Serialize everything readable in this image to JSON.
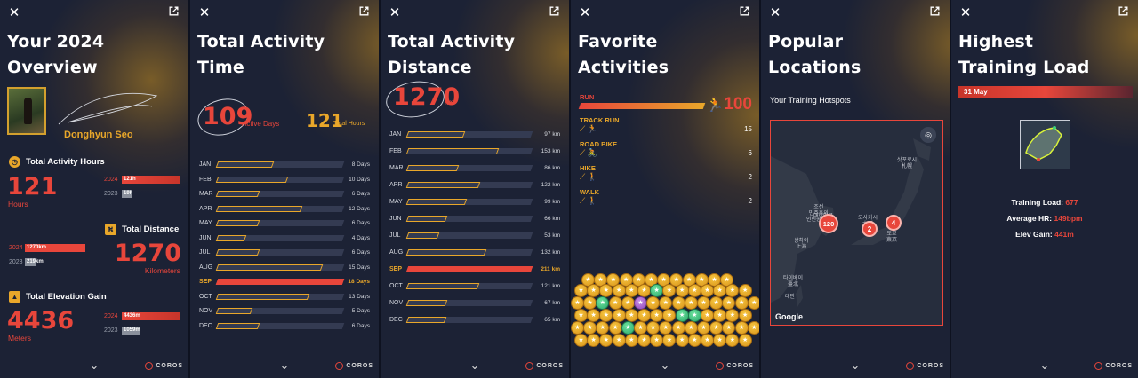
{
  "overview": {
    "title_l1": "Your 2024",
    "title_l2": "Overview",
    "user_name": "Donghyun Seo",
    "activity_hours": {
      "label": "Total Activity Hours",
      "value": "121",
      "unit": "Hours",
      "y2024_label": "2024",
      "y2024_value": "121h",
      "y2023_label": "2023",
      "y2023_value": "19h"
    },
    "distance": {
      "label": "Total Distance",
      "value": "1270",
      "unit": "Kilometers",
      "y2024_label": "2024",
      "y2024_value": "1270km",
      "y2023_label": "2023",
      "y2023_value": "219km"
    },
    "elevation": {
      "label": "Total Elevation Gain",
      "value": "4436",
      "unit": "Meters",
      "y2024_label": "2024",
      "y2024_value": "4436m",
      "y2023_label": "2023",
      "y2023_value": "1059m"
    }
  },
  "activity_time": {
    "title_l1": "Total Activity",
    "title_l2": "Time",
    "active_days": "109",
    "active_days_label": "Active Days",
    "total_hours": "121",
    "total_hours_label": "Total Hours",
    "months": [
      {
        "m": "JAN",
        "v": "8 Days",
        "n": 8
      },
      {
        "m": "FEB",
        "v": "10 Days",
        "n": 10
      },
      {
        "m": "MAR",
        "v": "6 Days",
        "n": 6
      },
      {
        "m": "APR",
        "v": "12 Days",
        "n": 12
      },
      {
        "m": "MAY",
        "v": "6 Days",
        "n": 6
      },
      {
        "m": "JUN",
        "v": "4 Days",
        "n": 4
      },
      {
        "m": "JUL",
        "v": "6 Days",
        "n": 6
      },
      {
        "m": "AUG",
        "v": "15 Days",
        "n": 15
      },
      {
        "m": "SEP",
        "v": "18 Days",
        "n": 18,
        "hot": true
      },
      {
        "m": "OCT",
        "v": "13 Days",
        "n": 13
      },
      {
        "m": "NOV",
        "v": "5 Days",
        "n": 5
      },
      {
        "m": "DEC",
        "v": "6 Days",
        "n": 6
      }
    ],
    "max": 18
  },
  "activity_distance": {
    "title": "Total Activity Distance",
    "value": "1270",
    "unit": "km",
    "months": [
      {
        "m": "JAN",
        "v": "97 km",
        "n": 97
      },
      {
        "m": "FEB",
        "v": "153 km",
        "n": 153
      },
      {
        "m": "MAR",
        "v": "86 km",
        "n": 86
      },
      {
        "m": "APR",
        "v": "122 km",
        "n": 122
      },
      {
        "m": "MAY",
        "v": "99 km",
        "n": 99
      },
      {
        "m": "JUN",
        "v": "66 km",
        "n": 66
      },
      {
        "m": "JUL",
        "v": "53 km",
        "n": 53
      },
      {
        "m": "AUG",
        "v": "132 km",
        "n": 132
      },
      {
        "m": "SEP",
        "v": "211 km",
        "n": 211,
        "hot": true
      },
      {
        "m": "OCT",
        "v": "121 km",
        "n": 121
      },
      {
        "m": "NOV",
        "v": "67 km",
        "n": 67
      },
      {
        "m": "DEC",
        "v": "65 km",
        "n": 65
      }
    ],
    "max": 211
  },
  "favorites": {
    "title_l1": "Favorite",
    "title_l2": "Activities",
    "run_label": "RUN",
    "run_count": "100",
    "items": [
      {
        "label": "TRACK RUN",
        "count": "15"
      },
      {
        "label": "ROAD BIKE",
        "count": "6"
      },
      {
        "label": "HIKE",
        "count": "2"
      },
      {
        "label": "WALK",
        "count": "2"
      }
    ]
  },
  "locations": {
    "title_l1": "Popular",
    "title_l2": "Locations",
    "subtitle": "Your Training Hotspots",
    "markers": [
      {
        "count": "120"
      },
      {
        "count": "2"
      },
      {
        "count": "4"
      }
    ],
    "map_labels": [
      "조선\n민주주의\n인민공화국",
      "대한민국",
      "상하이\n上海",
      "타이베이\n臺北",
      "대만",
      "오사카시\n大阪",
      "도쿄\n東京",
      "삿포로시\n札幌"
    ],
    "attribution": "Google"
  },
  "training_load": {
    "title_l1": "Highest",
    "title_l2": "Training Load",
    "date": "31 May",
    "load_label": "Training Load:",
    "load_value": "677",
    "hr_label": "Average HR:",
    "hr_value": "149bpm",
    "elev_label": "Elev Gain:",
    "elev_value": "441m"
  },
  "brand": "COROS",
  "colors": {
    "accent_red": "#e8463b",
    "accent_orange": "#e9a72a",
    "panel_bg": "#1c2235"
  }
}
